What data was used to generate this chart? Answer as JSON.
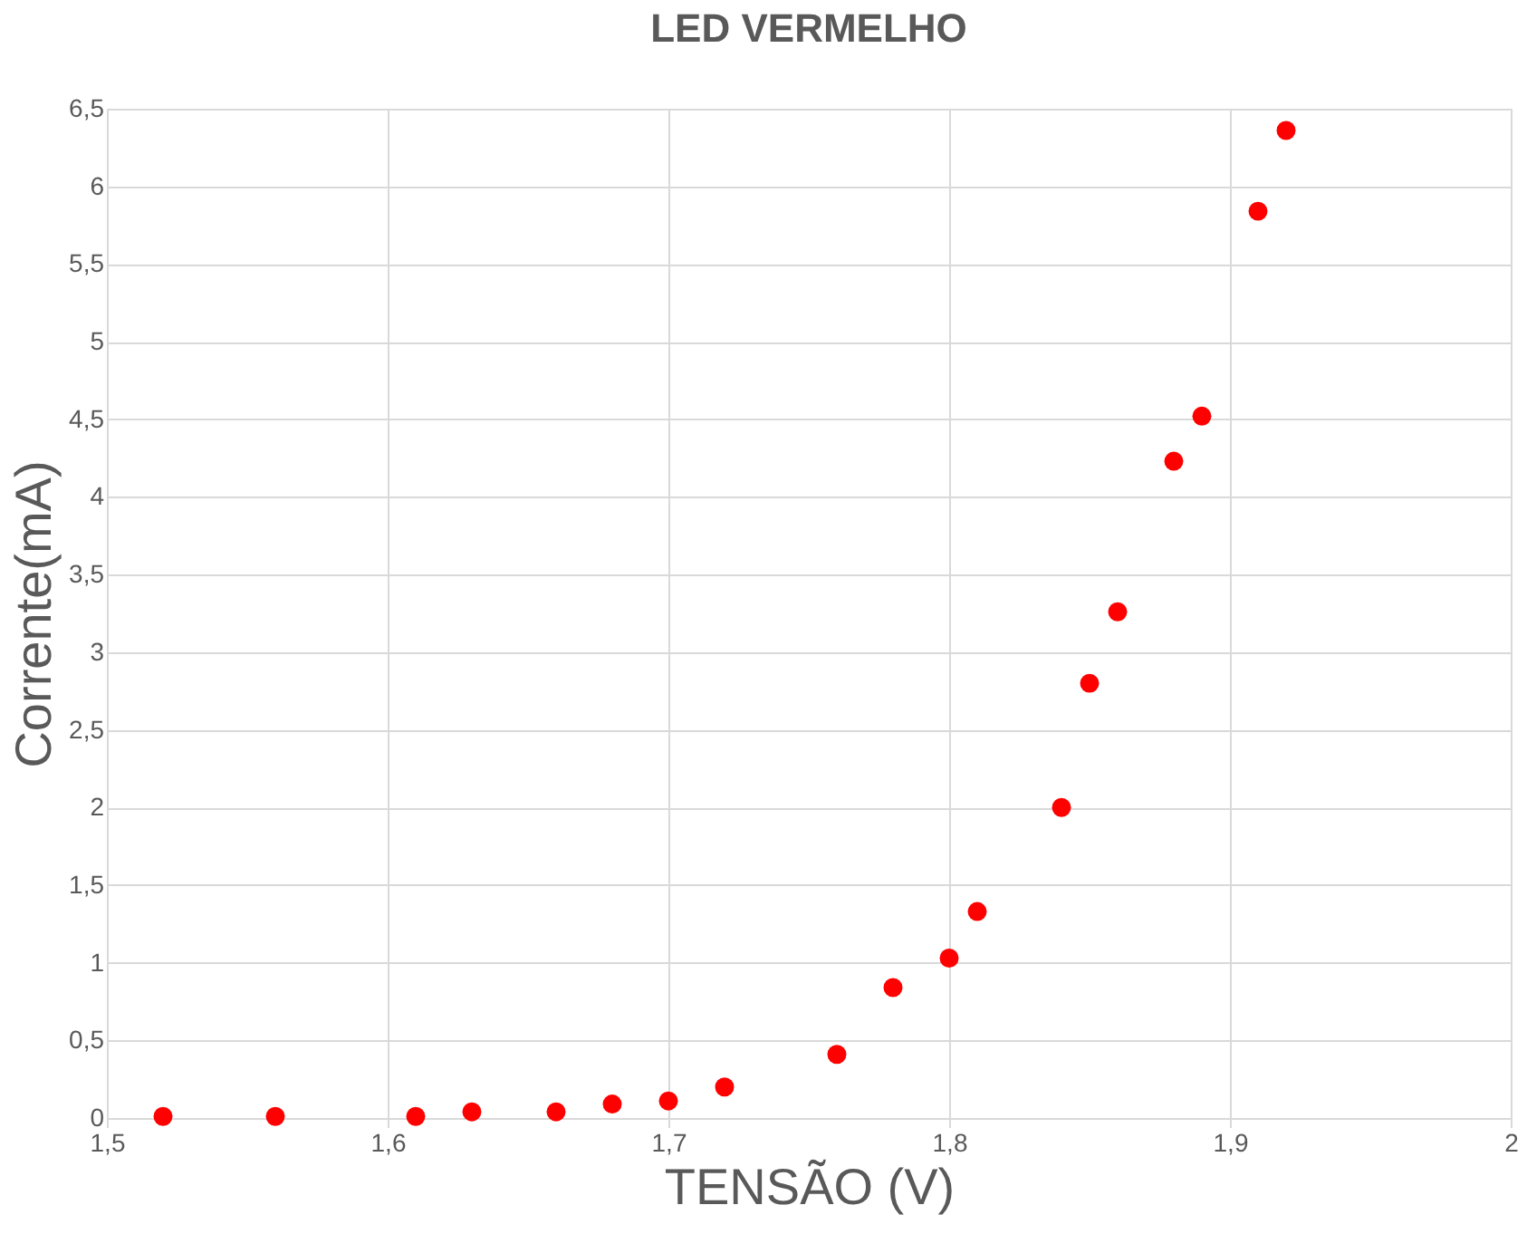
{
  "chart_data": {
    "type": "scatter",
    "title": "LED VERMELHO",
    "xlabel": "TENSÃO (V)",
    "ylabel": "Corrente(mA)",
    "x": [
      1.52,
      1.56,
      1.61,
      1.63,
      1.66,
      1.68,
      1.7,
      1.72,
      1.76,
      1.78,
      1.8,
      1.81,
      1.84,
      1.85,
      1.86,
      1.88,
      1.89,
      1.91,
      1.92
    ],
    "series": [
      {
        "color": "#ff0000",
        "values": [
          0.01,
          0.01,
          0.01,
          0.04,
          0.04,
          0.09,
          0.11,
          0.2,
          0.41,
          0.84,
          1.03,
          1.33,
          2.0,
          2.8,
          3.26,
          4.23,
          4.52,
          5.84,
          6.36
        ]
      }
    ],
    "xlim": [
      1.5,
      2
    ],
    "ylim": [
      0,
      6.5
    ],
    "xticks": [
      {
        "value": 1.5,
        "label": "1,5"
      },
      {
        "value": 1.6,
        "label": "1,6"
      },
      {
        "value": 1.7,
        "label": "1,7"
      },
      {
        "value": 1.8,
        "label": "1,8"
      },
      {
        "value": 1.9,
        "label": "1,9"
      },
      2
    ],
    "yticks": [
      0,
      {
        "value": 0.5,
        "label": "0,5"
      },
      1,
      {
        "value": 1.5,
        "label": "1,5"
      },
      2,
      {
        "value": 2.5,
        "label": "2,5"
      },
      3,
      {
        "value": 3.5,
        "label": "3,5"
      },
      4,
      {
        "value": 4.5,
        "label": "4,5"
      },
      5,
      {
        "value": 5.5,
        "label": "5,5"
      },
      6,
      {
        "value": 6.5,
        "label": "6,5"
      }
    ],
    "grid": true,
    "marker": "circle"
  }
}
